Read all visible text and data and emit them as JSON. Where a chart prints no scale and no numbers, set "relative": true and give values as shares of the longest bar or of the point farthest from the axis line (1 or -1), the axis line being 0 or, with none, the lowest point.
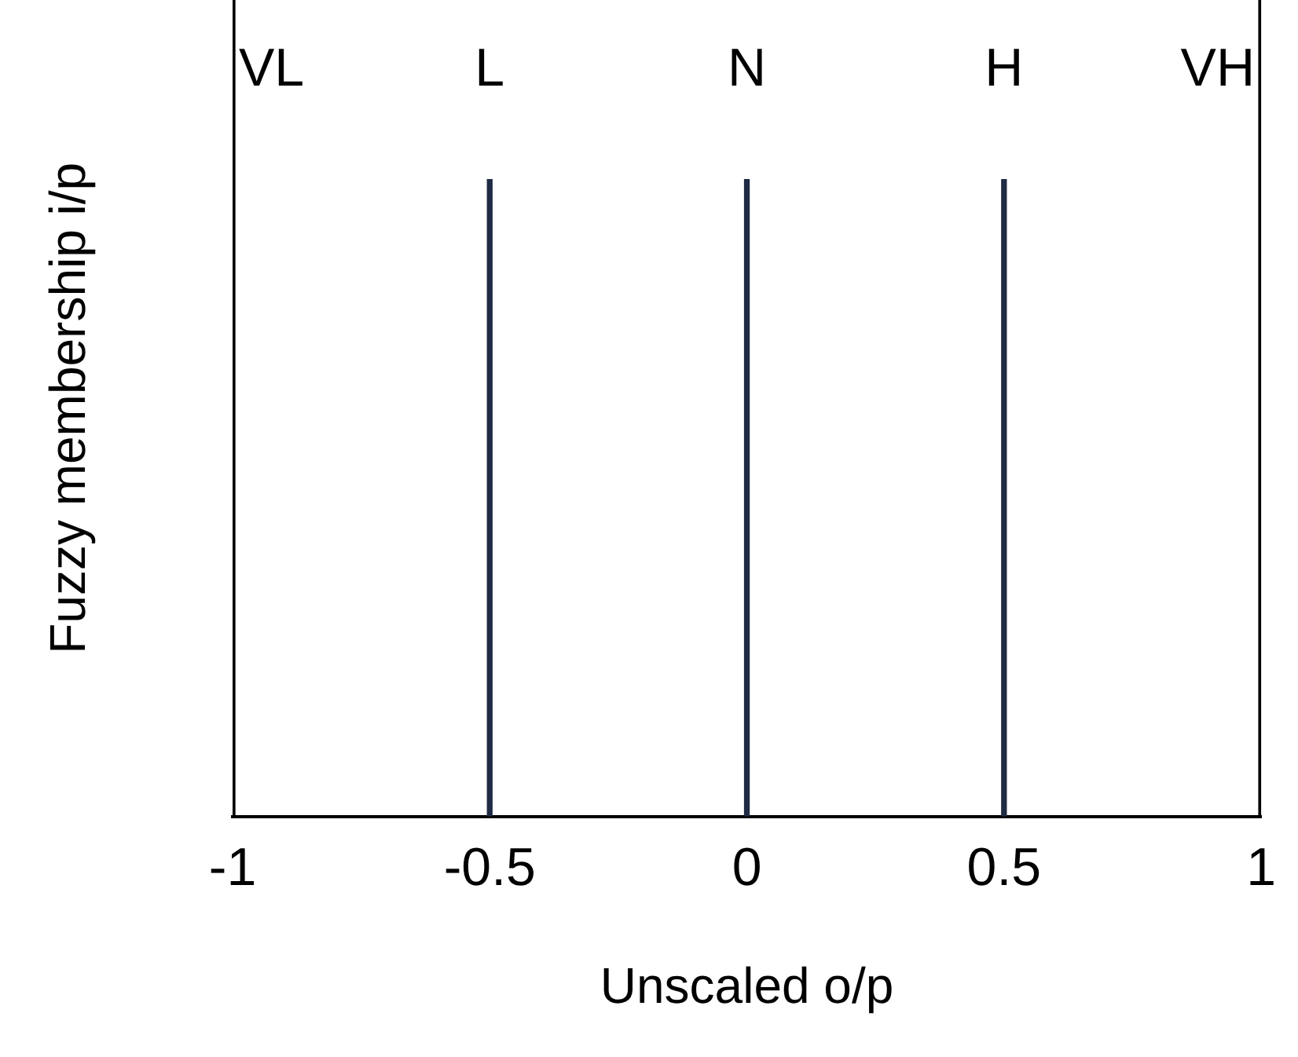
{
  "chart_data": {
    "type": "bar",
    "xlabel": "Unscaled o/p",
    "ylabel": "Fuzzy membership i/p",
    "relative": true,
    "xlim": [
      -1,
      1
    ],
    "xticks": [
      -1,
      -0.5,
      0,
      0.5,
      1
    ],
    "legend": false,
    "series": [
      {
        "name": "VL",
        "color": "#000000",
        "x": [
          -1
        ],
        "values": [
          1
        ]
      },
      {
        "name": "L",
        "color": "#1f2a44",
        "x": [
          -0.5
        ],
        "values": [
          0.78
        ]
      },
      {
        "name": "N",
        "color": "#1f2a44",
        "x": [
          0
        ],
        "values": [
          0.78
        ]
      },
      {
        "name": "H",
        "color": "#1f2a44",
        "x": [
          0.5
        ],
        "values": [
          0.78
        ]
      },
      {
        "name": "VH",
        "color": "#000000",
        "x": [
          1
        ],
        "values": [
          1
        ]
      }
    ]
  }
}
